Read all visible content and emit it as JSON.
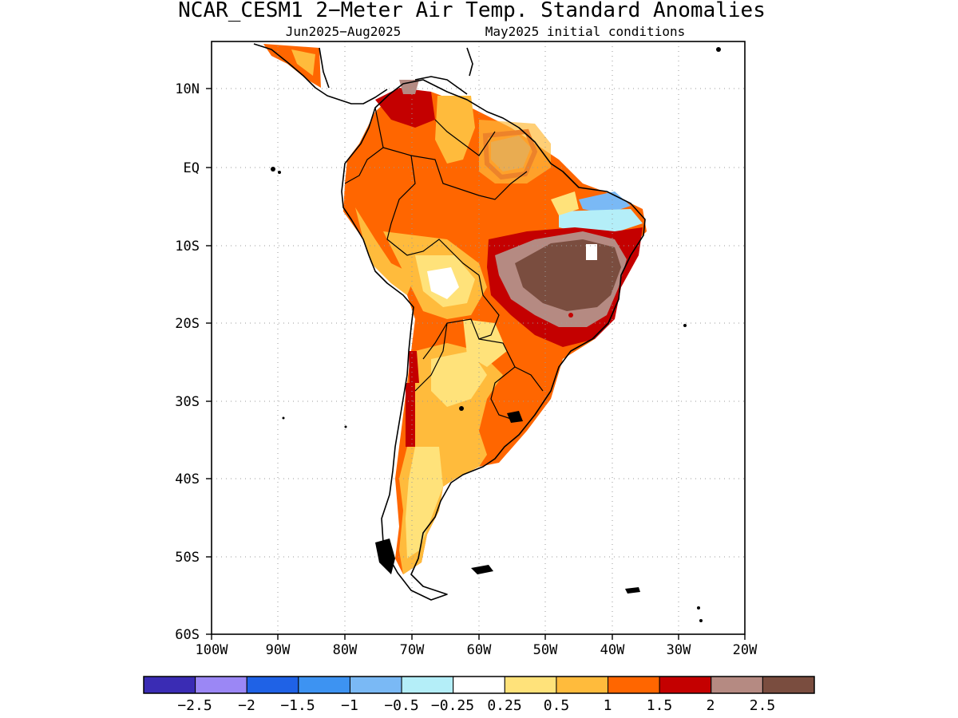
{
  "title": "NCAR_CESM1 2−Meter Air Temp. Standard Anomalies",
  "subtitle_period": "Jun2025−Aug2025",
  "subtitle_init": "May2025 initial conditions",
  "axes": {
    "lat_ticks": [
      "10N",
      "EQ",
      "10S",
      "20S",
      "30S",
      "40S",
      "50S",
      "60S"
    ],
    "lon_ticks": [
      "100W",
      "90W",
      "80W",
      "70W",
      "60W",
      "50W",
      "40W",
      "30W",
      "20W"
    ]
  },
  "colorbar": {
    "labels": [
      "−2.5",
      "−2",
      "−1.5",
      "−1",
      "−0.5",
      "−0.25",
      "0.25",
      "0.5",
      "1",
      "1.5",
      "2",
      "2.5"
    ],
    "colors": [
      "#3a2cb4",
      "#9b87f5",
      "#1f62e6",
      "#3d93f2",
      "#7ab9f5",
      "#b4eef8",
      "#ffffff",
      "#ffe27a",
      "#ffbb3c",
      "#ff6600",
      "#c40000",
      "#b58a82",
      "#7a4d3f"
    ]
  },
  "chart_data": {
    "type": "heatmap",
    "title": "NCAR_CESM1 2−Meter Air Temp. Standard Anomalies",
    "subtitle": "Jun2025−Aug2025    May2025 initial conditions",
    "region": "South America",
    "xlim": [
      -100,
      -20
    ],
    "ylim": [
      -60,
      16
    ],
    "grid": true,
    "scale_bounds": [
      -2.5,
      -2,
      -1.5,
      -1,
      -0.5,
      -0.25,
      0.25,
      0.5,
      1,
      1.5,
      2,
      2.5
    ],
    "max_anomaly_region": "eastern Brazil (> 2.5)"
  }
}
